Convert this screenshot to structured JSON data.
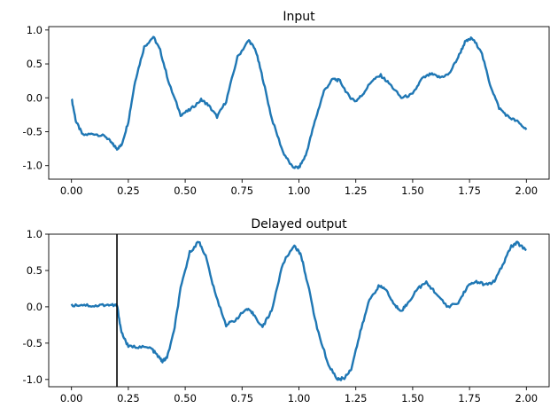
{
  "chart_data": [
    {
      "type": "line",
      "title": "Input",
      "xlabel": "",
      "ylabel": "",
      "xlim": [
        -0.1,
        2.1
      ],
      "ylim": [
        -1.2,
        1.05
      ],
      "xticks": [
        "0.00",
        "0.25",
        "0.50",
        "0.75",
        "1.00",
        "1.25",
        "1.50",
        "1.75",
        "2.00"
      ],
      "yticks": [
        "1.0",
        "0.5",
        "0.0",
        "-0.5",
        "-1.0"
      ],
      "grid": false,
      "series": [
        {
          "color": "#1f77b4",
          "x": [
            0.0,
            0.02,
            0.05,
            0.1,
            0.15,
            0.18,
            0.2,
            0.22,
            0.25,
            0.28,
            0.32,
            0.36,
            0.39,
            0.43,
            0.48,
            0.52,
            0.57,
            0.6,
            0.64,
            0.68,
            0.73,
            0.78,
            0.81,
            0.84,
            0.88,
            0.93,
            0.97,
            1.0,
            1.03,
            1.07,
            1.11,
            1.15,
            1.18,
            1.22,
            1.25,
            1.28,
            1.32,
            1.36,
            1.4,
            1.45,
            1.5,
            1.54,
            1.58,
            1.62,
            1.66,
            1.7,
            1.73,
            1.76,
            1.8,
            1.84,
            1.88,
            1.92,
            1.96,
            2.0
          ],
          "y": [
            0.0,
            -0.35,
            -0.55,
            -0.53,
            -0.57,
            -0.68,
            -0.75,
            -0.7,
            -0.35,
            0.25,
            0.75,
            0.9,
            0.7,
            0.2,
            -0.25,
            -0.18,
            -0.03,
            -0.1,
            -0.28,
            -0.05,
            0.6,
            0.85,
            0.7,
            0.3,
            -0.3,
            -0.8,
            -1.02,
            -1.03,
            -0.85,
            -0.35,
            0.1,
            0.28,
            0.25,
            0.02,
            -0.05,
            0.05,
            0.25,
            0.33,
            0.2,
            0.0,
            0.05,
            0.28,
            0.35,
            0.3,
            0.35,
            0.6,
            0.82,
            0.88,
            0.7,
            0.2,
            -0.15,
            -0.28,
            -0.35,
            -0.47
          ]
        }
      ]
    },
    {
      "type": "line",
      "title": "Delayed output",
      "xlabel": "",
      "ylabel": "",
      "xlim": [
        -0.1,
        2.1
      ],
      "ylim": [
        -1.1,
        1.0
      ],
      "xticks": [
        "0.00",
        "0.25",
        "0.50",
        "0.75",
        "1.00",
        "1.25",
        "1.50",
        "1.75",
        "2.00"
      ],
      "yticks": [
        "1.0",
        "0.5",
        "0.0",
        "-0.5",
        "-1.0"
      ],
      "grid": false,
      "vline": {
        "x": 0.2,
        "color": "#000000"
      },
      "series": [
        {
          "color": "#1f77b4",
          "x": [
            0.0,
            0.05,
            0.1,
            0.15,
            0.19,
            0.2,
            0.22,
            0.25,
            0.3,
            0.35,
            0.38,
            0.4,
            0.42,
            0.45,
            0.48,
            0.52,
            0.56,
            0.59,
            0.63,
            0.68,
            0.72,
            0.77,
            0.8,
            0.84,
            0.88,
            0.93,
            0.98,
            1.01,
            1.04,
            1.08,
            1.13,
            1.17,
            1.2,
            1.23,
            1.27,
            1.31,
            1.35,
            1.38,
            1.42,
            1.45,
            1.48,
            1.52,
            1.56,
            1.6,
            1.65,
            1.7,
            1.74,
            1.78,
            1.82,
            1.86,
            1.9,
            1.93,
            1.96,
            2.0
          ],
          "y": [
            0.02,
            0.03,
            0.01,
            0.03,
            0.02,
            0.02,
            -0.35,
            -0.55,
            -0.55,
            -0.57,
            -0.68,
            -0.75,
            -0.7,
            -0.35,
            0.25,
            0.75,
            0.9,
            0.7,
            0.2,
            -0.25,
            -0.18,
            -0.03,
            -0.1,
            -0.28,
            -0.05,
            0.6,
            0.85,
            0.7,
            0.3,
            -0.3,
            -0.8,
            -1.0,
            -0.98,
            -0.85,
            -0.35,
            0.1,
            0.28,
            0.25,
            0.02,
            -0.05,
            0.05,
            0.25,
            0.33,
            0.2,
            0.0,
            0.05,
            0.28,
            0.35,
            0.3,
            0.35,
            0.6,
            0.82,
            0.88,
            0.78
          ]
        }
      ]
    }
  ]
}
